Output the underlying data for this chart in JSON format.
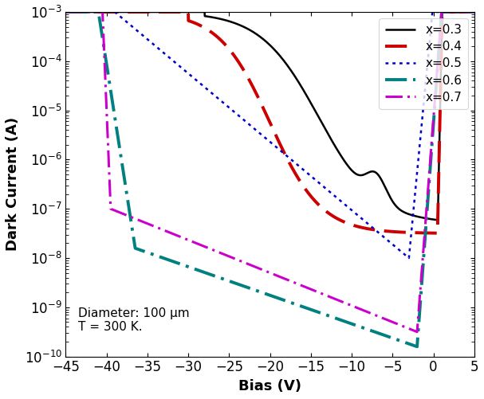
{
  "xlabel": "Bias (V)",
  "ylabel": "Dark Current (A)",
  "xlim": [
    -45,
    5
  ],
  "ylim_log": [
    -10,
    -3
  ],
  "annotation": "Diameter: 100 μm\nT = 300 K.",
  "legend_entries": [
    "x=0.3",
    "x=0.4",
    "x=0.5",
    "x=0.6",
    "x=0.7"
  ],
  "colors": [
    "#000000",
    "#cc0000",
    "#0000cc",
    "#008080",
    "#cc00cc"
  ],
  "linewidths": [
    1.8,
    2.8,
    1.8,
    2.8,
    2.2
  ],
  "curve_x03": {
    "flat_end": -28.0,
    "flat_level": -3.0,
    "drop_mid": -14.0,
    "drop_rate": 0.25,
    "low_level": -7.3,
    "kink_v": -7.0,
    "kink_amp": 0.5,
    "forward_ref": -7.5,
    "forward_v0": 0.5,
    "forward_k": 8.0
  },
  "curve_x04": {
    "flat_end": -30.0,
    "flat_level": -3.0,
    "drop_mid": -20.0,
    "drop_rate": 0.3,
    "low_level": -7.5,
    "forward_ref": -7.5,
    "forward_v0": 0.5,
    "forward_k": 8.0
  },
  "curve_x05": {
    "break_v": -39.0,
    "break_level": -3.0,
    "low_v": -3.0,
    "low_level": -8.0,
    "forward_v0": 1.5,
    "forward_k": 8.0
  },
  "curve_x06": {
    "break_v": -41.0,
    "break_level": -3.0,
    "knee_v": -36.5,
    "knee_level": -7.8,
    "low_v": -2.0,
    "low_level": -9.8,
    "forward_v0": 1.0,
    "forward_k": 10.0
  },
  "curve_x07": {
    "break_v": -40.5,
    "break_level": -3.0,
    "knee_v": -39.5,
    "knee_level": -7.0,
    "low_v": -2.0,
    "low_level": -9.5,
    "forward_v0": 1.0,
    "forward_k": 10.0
  }
}
